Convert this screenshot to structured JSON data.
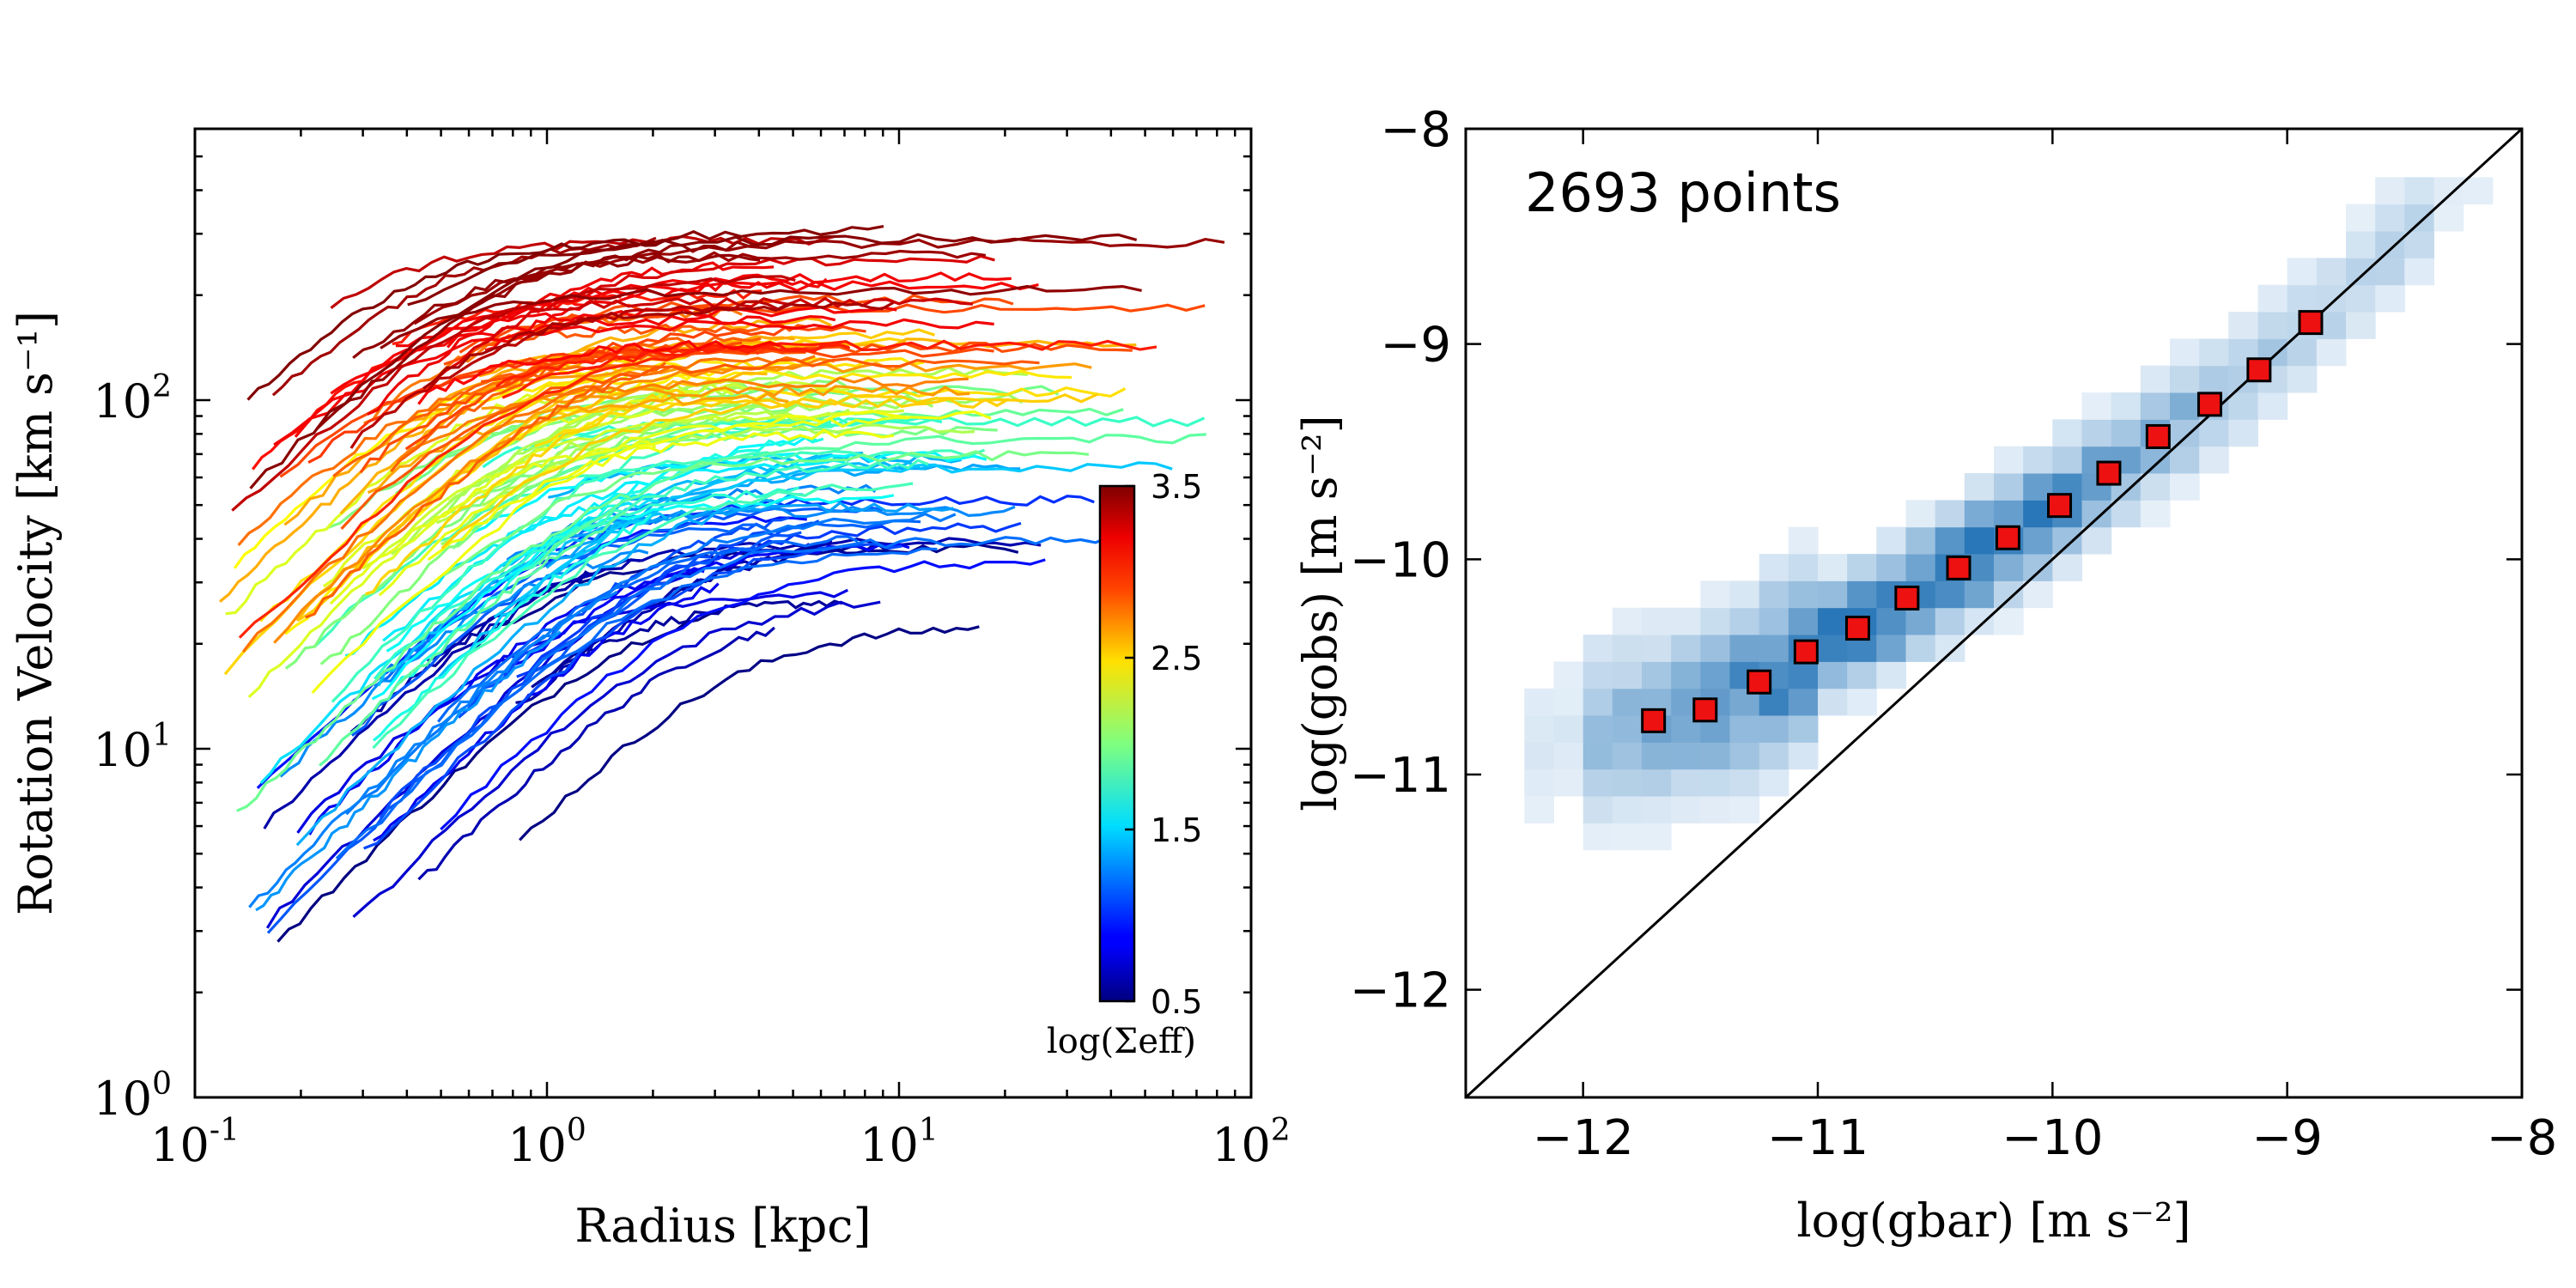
{
  "chart_data": [
    {
      "type": "line",
      "xlabel": "Radius [kpc]",
      "ylabel": "Rotation Velocity [km s⁻¹]",
      "xscale": "log",
      "yscale": "log",
      "xlim": [
        0.1,
        100
      ],
      "ylim": [
        1,
        600
      ],
      "x_ticks": [
        {
          "base": "10",
          "exp": "-1"
        },
        {
          "base": "10",
          "exp": "0"
        },
        {
          "base": "10",
          "exp": "1"
        },
        {
          "base": "10",
          "exp": "2"
        }
      ],
      "y_ticks": [
        {
          "base": "10",
          "exp": "0"
        },
        {
          "base": "10",
          "exp": "1"
        },
        {
          "base": "10",
          "exp": "2"
        }
      ],
      "colorbar": {
        "label": "log(Σeff)",
        "range": [
          0.5,
          3.5
        ],
        "ticks": [
          "0.5",
          "1.5",
          "2.5",
          "3.5"
        ],
        "colormap": "jet",
        "placement": "inside-right"
      },
      "grid": false,
      "series_description_values": {
        "count_estimate": 150,
        "note_colors_by_logSigma": true
      }
    },
    {
      "type": "heatmap",
      "xlabel": "log(gbar) [m s⁻²]",
      "ylabel": "log(gobs) [m s⁻²]",
      "xlim": [
        -12.5,
        -8
      ],
      "ylim": [
        -12.5,
        -8
      ],
      "x_ticks": [
        "−12",
        "−11",
        "−10",
        "−9",
        "−8"
      ],
      "y_ticks": [
        "−12",
        "−11",
        "−10",
        "−9",
        "−8"
      ],
      "annotation": "2693 points",
      "binned_points": {
        "x": [
          -11.7,
          -11.48,
          -11.25,
          -11.05,
          -10.83,
          -10.62,
          -10.4,
          -10.19,
          -9.97,
          -9.76,
          -9.55,
          -9.33,
          -9.12,
          -8.9
        ],
        "y": [
          -10.75,
          -10.7,
          -10.57,
          -10.43,
          -10.32,
          -10.18,
          -10.04,
          -9.9,
          -9.75,
          -9.6,
          -9.43,
          -9.28,
          -9.12,
          -8.9
        ],
        "marker": "square",
        "color": "#ee1111"
      },
      "one_to_one_line": true,
      "grid": false
    }
  ]
}
